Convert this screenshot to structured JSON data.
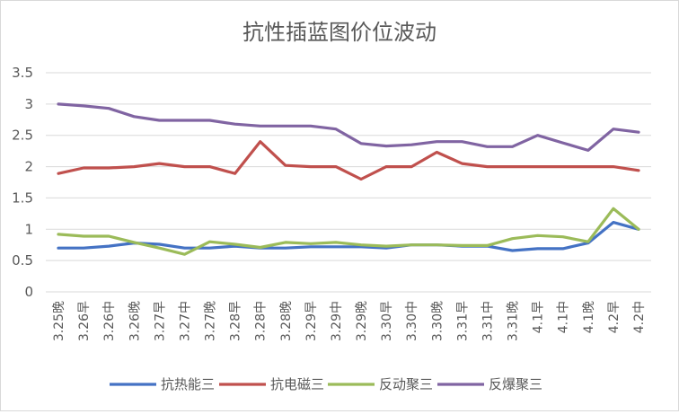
{
  "chart_data": {
    "type": "line",
    "title": "抗性插蓝图价位波动",
    "xlabel": "",
    "ylabel": "",
    "ylim": [
      0,
      3.5
    ],
    "yticks": [
      "0",
      "0.5",
      "1",
      "1.5",
      "2",
      "2.5",
      "3",
      "3.5"
    ],
    "grid": true,
    "legend_position": "bottom",
    "categories": [
      "3.25晚",
      "3.26早",
      "3.26中",
      "3.26晚",
      "3.27早",
      "3.27中",
      "3.27晚",
      "3.28早",
      "3.28中",
      "3.28晚",
      "3.29早",
      "3.29中",
      "3.29晚",
      "3.30早",
      "3.30中",
      "3.30晚",
      "3.31早",
      "3.31中",
      "3.31晚",
      "4.1早",
      "4.1中",
      "4.1晚",
      "4.2早",
      "4.2中"
    ],
    "series": [
      {
        "name": "抗热能三",
        "color": "#4472C4",
        "values": [
          0.7,
          0.7,
          0.73,
          0.78,
          0.76,
          0.7,
          0.7,
          0.73,
          0.7,
          0.7,
          0.72,
          0.72,
          0.72,
          0.7,
          0.75,
          0.75,
          0.73,
          0.73,
          0.66,
          0.69,
          0.69,
          0.78,
          1.11,
          1.0
        ]
      },
      {
        "name": "抗电磁三",
        "color": "#C0504D",
        "values": [
          1.89,
          1.98,
          1.98,
          2.0,
          2.05,
          2.0,
          2.0,
          1.89,
          2.4,
          2.02,
          2.0,
          2.0,
          1.8,
          2.0,
          2.0,
          2.23,
          2.05,
          2.0,
          2.0,
          2.0,
          2.0,
          2.0,
          2.0,
          1.94
        ]
      },
      {
        "name": "反动聚三",
        "color": "#9BBB59",
        "values": [
          0.92,
          0.89,
          0.89,
          0.79,
          0.7,
          0.6,
          0.8,
          0.76,
          0.71,
          0.79,
          0.77,
          0.79,
          0.75,
          0.73,
          0.75,
          0.75,
          0.74,
          0.74,
          0.85,
          0.9,
          0.88,
          0.8,
          1.33,
          1.0
        ]
      },
      {
        "name": "反爆聚三",
        "color": "#8064A2",
        "values": [
          3.0,
          2.97,
          2.93,
          2.8,
          2.74,
          2.74,
          2.74,
          2.68,
          2.65,
          2.65,
          2.65,
          2.6,
          2.37,
          2.33,
          2.35,
          2.4,
          2.4,
          2.32,
          2.32,
          2.5,
          2.38,
          2.26,
          2.6,
          2.55
        ]
      }
    ]
  }
}
